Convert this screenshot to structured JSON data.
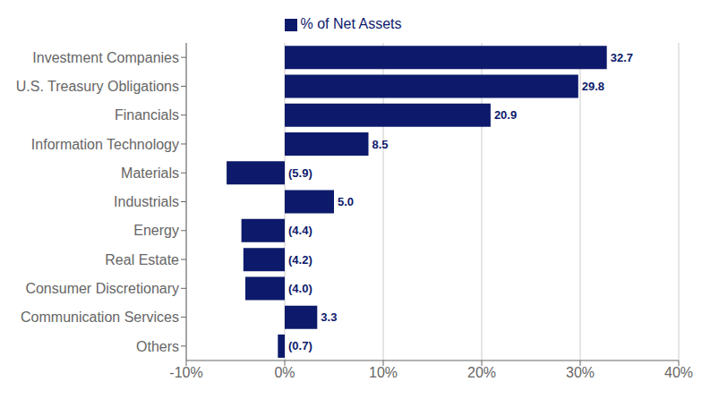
{
  "chart_data": {
    "type": "bar",
    "orientation": "horizontal",
    "categories": [
      "Investment Companies",
      "U.S. Treasury Obligations",
      "Financials",
      "Information Technology",
      "Materials",
      "Industrials",
      "Energy",
      "Real Estate",
      "Consumer Discretionary",
      "Communication Services",
      "Others"
    ],
    "series": [
      {
        "name": "% of Net Assets",
        "color": "#0d1a6b",
        "values": [
          32.7,
          29.8,
          20.9,
          8.5,
          -5.9,
          5.0,
          -4.4,
          -4.2,
          -4.0,
          3.3,
          -0.7
        ],
        "value_labels": [
          "32.7",
          "29.8",
          "20.9",
          "8.5",
          "(5.9)",
          "5.0",
          "(4.4)",
          "(4.2)",
          "(4.0)",
          "3.3",
          "(0.7)"
        ]
      }
    ],
    "xlim": [
      -10,
      40
    ],
    "xticks": [
      {
        "value": -10,
        "label": "-10%"
      },
      {
        "value": 0,
        "label": "0%"
      },
      {
        "value": 10,
        "label": "10%"
      },
      {
        "value": 20,
        "label": "20%"
      },
      {
        "value": 30,
        "label": "30%"
      },
      {
        "value": 40,
        "label": "40%"
      }
    ],
    "grid": true,
    "data_labels": true,
    "legend": "top"
  }
}
